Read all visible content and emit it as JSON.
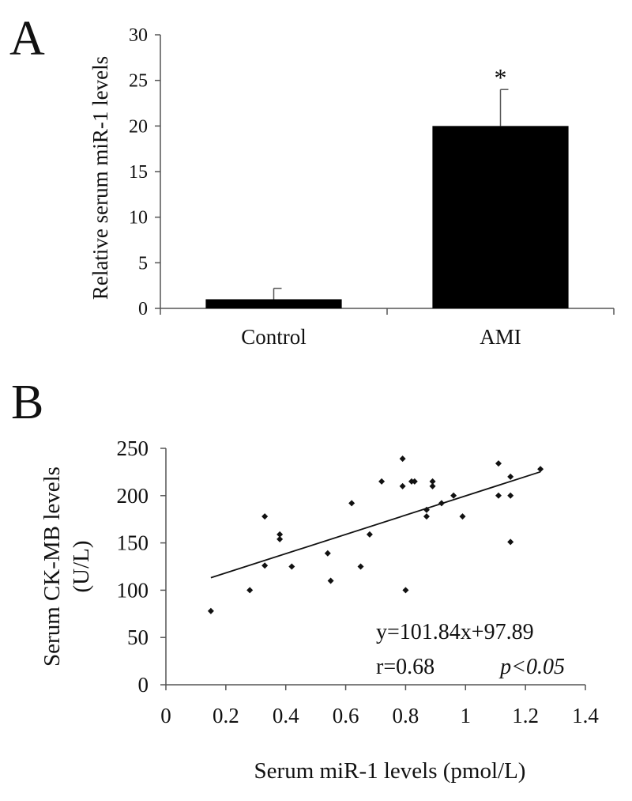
{
  "panels": {
    "a_label": "A",
    "b_label": "B"
  },
  "colors": {
    "bar": "#000000",
    "axis": "#555555",
    "marker": "#111111"
  },
  "chart_data": [
    {
      "type": "bar",
      "ylabel": "Relative serum miR-1 levels",
      "categories": [
        "Control",
        "AMI"
      ],
      "values": [
        1,
        20
      ],
      "error": [
        1.2,
        4
      ],
      "ylim": [
        0,
        30
      ],
      "yticks": [
        "0",
        "5",
        "10",
        "15",
        "20",
        "25",
        "30"
      ],
      "annotations": [
        {
          "category": "AMI",
          "text": "*"
        }
      ],
      "grid": false
    },
    {
      "type": "scatter",
      "xlabel": "Serum miR-1 levels (pmol/L)",
      "ylabel_line1": "Serum CK-MB levels",
      "ylabel_line2": "(U/L)",
      "xlim": [
        0,
        1.4
      ],
      "ylim": [
        0,
        250
      ],
      "xticks": [
        "0",
        "0.2",
        "0.4",
        "0.6",
        "0.8",
        "1",
        "1.2",
        "1.4"
      ],
      "yticks": [
        "0",
        "50",
        "100",
        "150",
        "200",
        "250"
      ],
      "points": [
        [
          0.15,
          78
        ],
        [
          0.28,
          100
        ],
        [
          0.33,
          178
        ],
        [
          0.33,
          126
        ],
        [
          0.38,
          159
        ],
        [
          0.38,
          154
        ],
        [
          0.42,
          125
        ],
        [
          0.54,
          139
        ],
        [
          0.55,
          110
        ],
        [
          0.62,
          192
        ],
        [
          0.65,
          125
        ],
        [
          0.68,
          159
        ],
        [
          0.72,
          215
        ],
        [
          0.79,
          239
        ],
        [
          0.79,
          210
        ],
        [
          0.8,
          100
        ],
        [
          0.82,
          215
        ],
        [
          0.83,
          215
        ],
        [
          0.87,
          185
        ],
        [
          0.87,
          178
        ],
        [
          0.89,
          215
        ],
        [
          0.89,
          210
        ],
        [
          0.92,
          192
        ],
        [
          0.96,
          200
        ],
        [
          0.99,
          178
        ],
        [
          1.11,
          234
        ],
        [
          1.11,
          200
        ],
        [
          1.15,
          220
        ],
        [
          1.15,
          200
        ],
        [
          1.15,
          151
        ],
        [
          1.25,
          228
        ]
      ],
      "trendline": {
        "slope": 101.84,
        "intercept": 97.89,
        "x_range": [
          0.15,
          1.25
        ]
      },
      "equation": "y=101.84x+97.89",
      "r_text": "r=0.68",
      "p_text": "p<0.05",
      "grid": false
    }
  ]
}
